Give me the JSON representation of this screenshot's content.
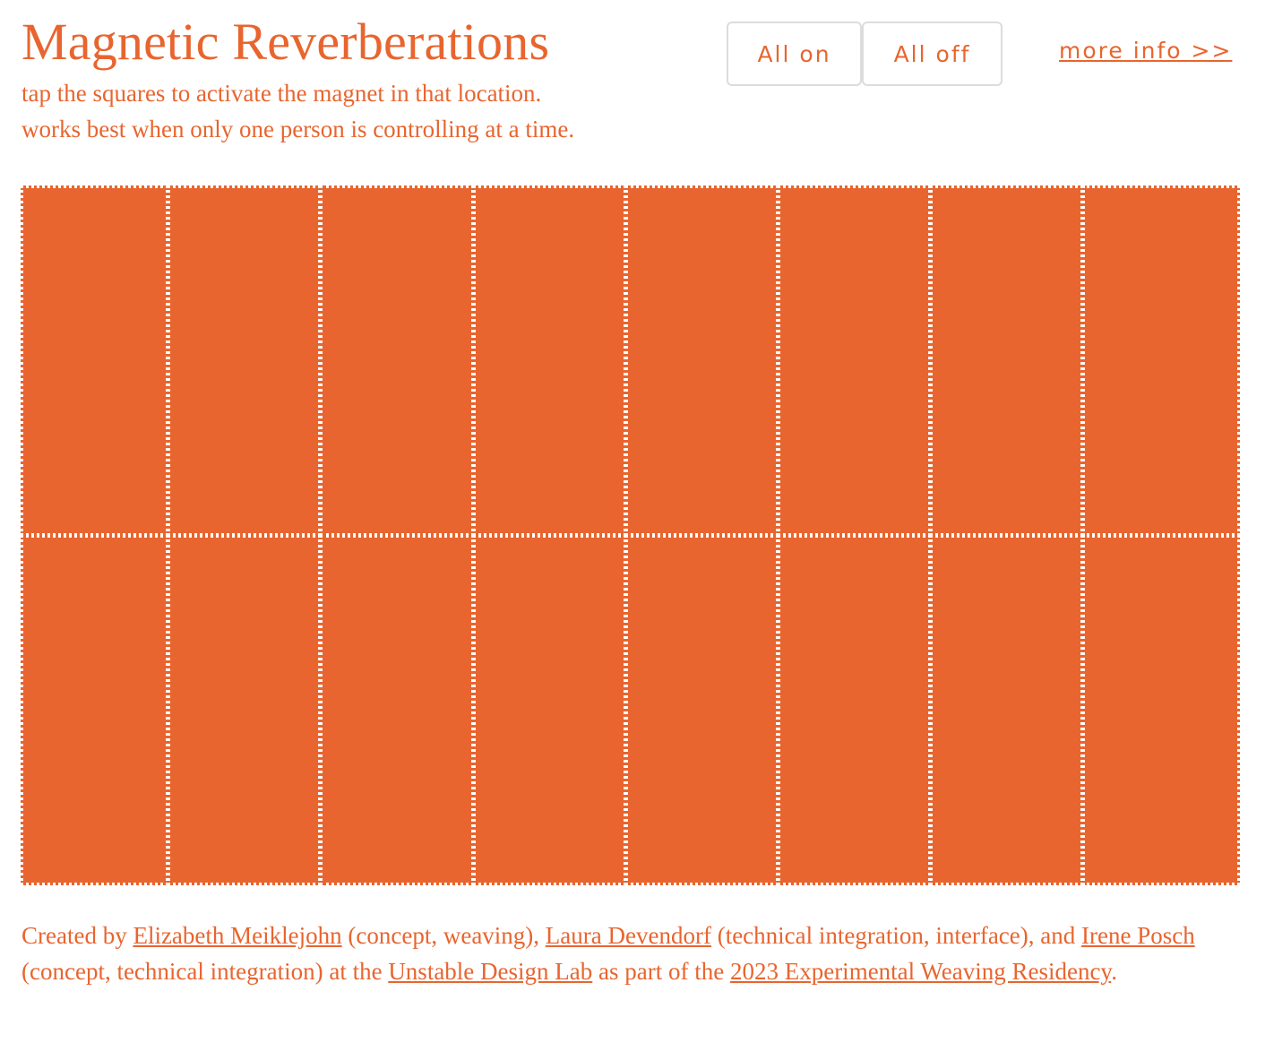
{
  "header": {
    "title": "Magnetic Reverberations",
    "subtitle_line1": "tap the squares to activate the magnet in that location.",
    "subtitle_line2": "works best when only one person is controlling at a time."
  },
  "controls": {
    "all_on_label": "All on",
    "all_off_label": "All off",
    "more_info_label": "more info >>"
  },
  "grid": {
    "rows": 2,
    "columns": 8,
    "cell_color": "#e8652f",
    "border_color": "#ffffff"
  },
  "footer": {
    "text_created_by": "Created by ",
    "link_meiklejohn": "Elizabeth Meiklejohn",
    "text_role_1": " (concept, weaving), ",
    "link_devendorf": "Laura Devendorf",
    "text_role_2": " (technical integration, interface), and ",
    "link_posch": "Irene Posch",
    "text_role_3": " (concept, technical integration) at the ",
    "link_lab": "Unstable Design Lab",
    "text_part_of": " as part of the ",
    "link_residency": "2023 Experimental Weaving Residency",
    "text_end": "."
  },
  "colors": {
    "accent": "#e8652f",
    "background": "#ffffff",
    "button_border": "#dcdcdc"
  }
}
